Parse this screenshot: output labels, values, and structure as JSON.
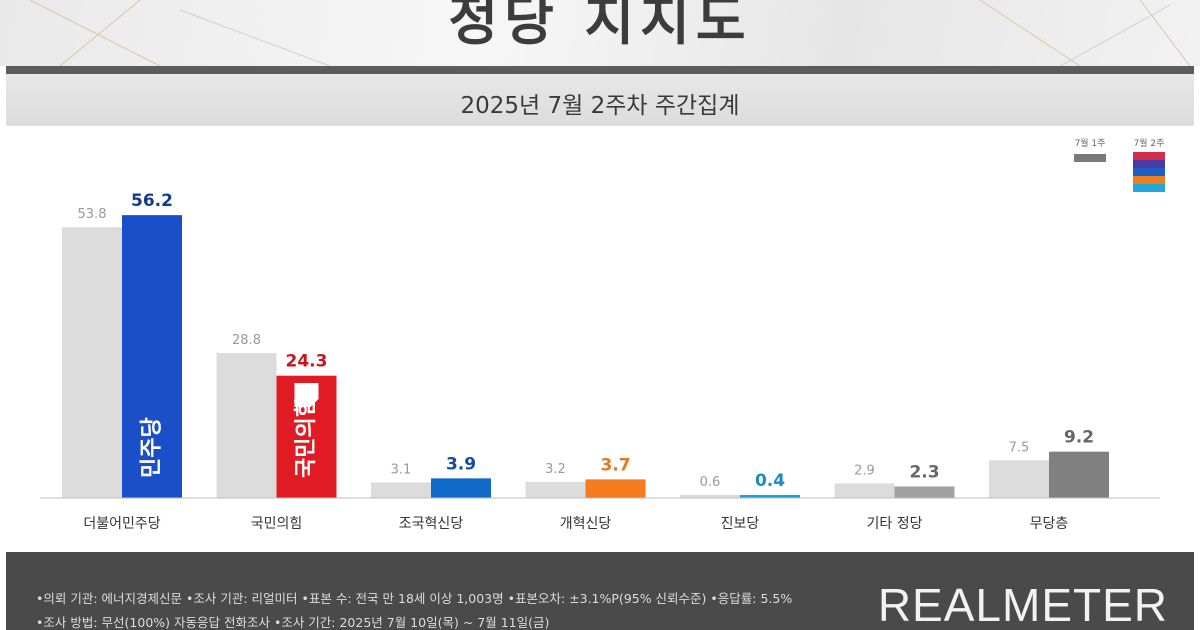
{
  "header": {
    "title": "정당 지지도",
    "subtitle": "2025년 7월 2주차 주간집계"
  },
  "chart_data": {
    "type": "bar",
    "categories": [
      "더불어민주당",
      "국민의힘",
      "조국혁신당",
      "개혁신당",
      "진보당",
      "기타 정당",
      "무당층"
    ],
    "series": [
      {
        "name": "7월 1주",
        "values": [
          53.8,
          28.8,
          3.1,
          3.2,
          0.6,
          2.9,
          7.5
        ]
      },
      {
        "name": "7월 2주",
        "values": [
          56.2,
          24.3,
          3.9,
          3.7,
          0.4,
          2.3,
          9.2
        ]
      }
    ],
    "ylim": [
      0,
      60
    ],
    "grid": false,
    "legend": "top-right",
    "colors": {
      "prev": "#dcdcdc",
      "current": [
        "#1a4fc9",
        "#e01b24",
        "#0f69c9",
        "#f47b20",
        "#1aa3d9",
        "#a2a2a2",
        "#808080"
      ],
      "value_label": [
        "#123a8e",
        "#c8151e",
        "#0d4f9e",
        "#e8761c",
        "#1a8ec4",
        "#666666",
        "#666666"
      ],
      "legend_swatch_current": [
        "#d42d4a",
        "#4a3aa6",
        "#1a5fc8",
        "#f07d22",
        "#22a7d8"
      ]
    },
    "bar_logos": [
      "민주당",
      "국민의힘"
    ]
  },
  "footer": {
    "note_1": "•의뢰 기관: 에너지경제신문  •조사 기관: 리얼미터 •표본 수: 전국 만 18세 이상 1,003명 •표본오차: ±3.1%P(95% 신뢰수준) •응답률: 5.5%",
    "note_2": "•조사 방법: 무선(100%) 자동응답 전화조사 •조사 기간: 2025년 7월 10일(목) ~ 7월 11일(금)",
    "brand": "REALMETER"
  }
}
